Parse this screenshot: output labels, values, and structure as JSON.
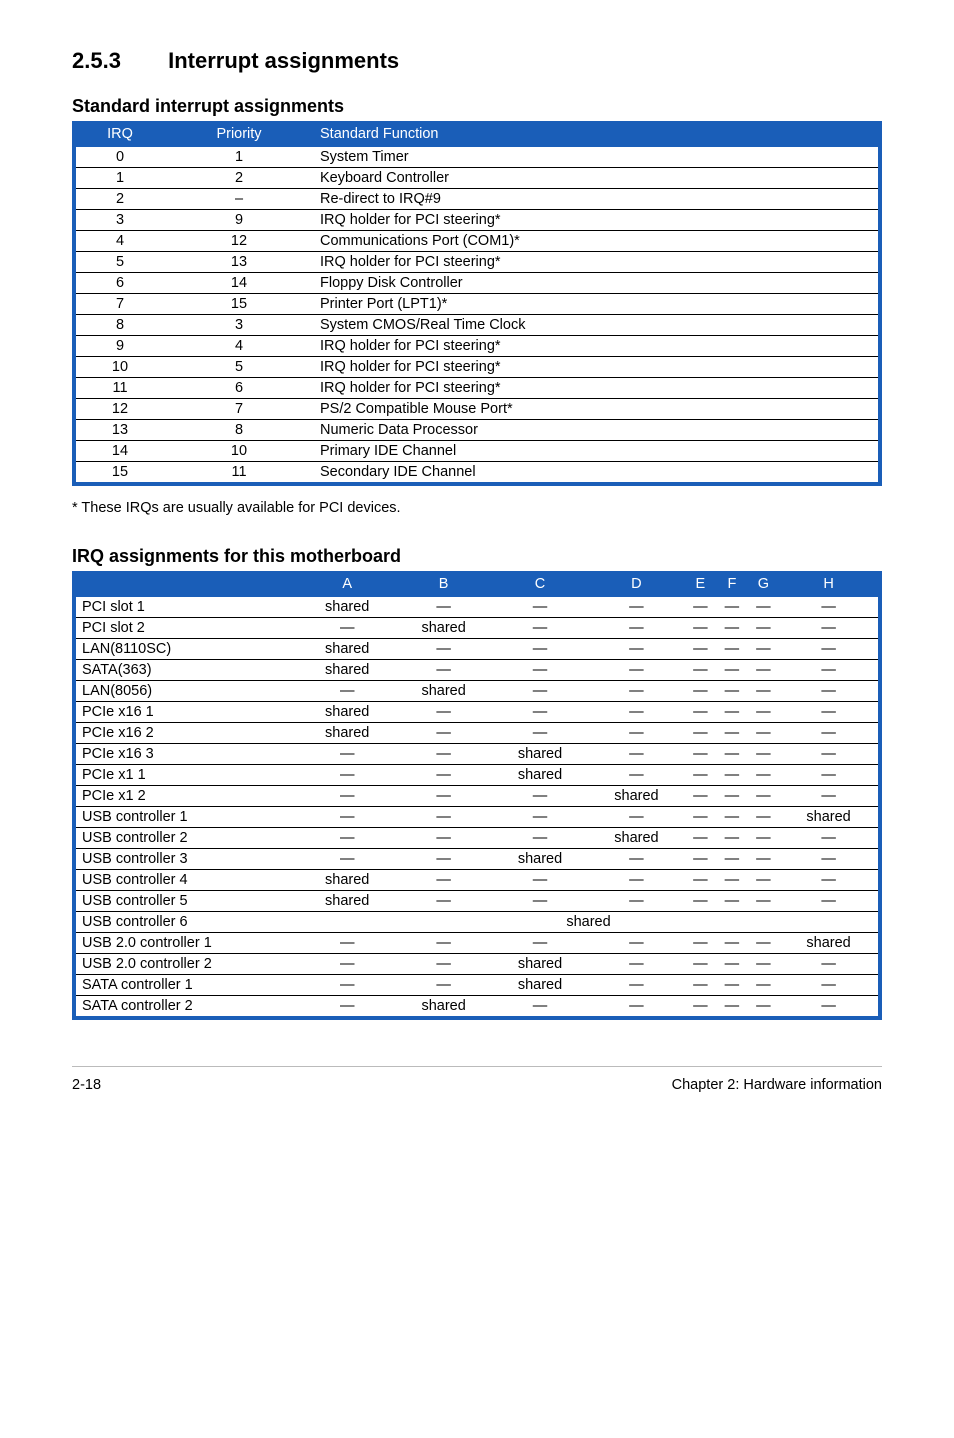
{
  "heading": {
    "number": "2.5.3",
    "title": "Interrupt assignments"
  },
  "table1": {
    "caption": "Standard interrupt assignments",
    "headers": {
      "irq": "IRQ",
      "priority": "Priority",
      "func": "Standard Function"
    },
    "rows": [
      {
        "irq": "0",
        "priority": "1",
        "func": "System Timer"
      },
      {
        "irq": "1",
        "priority": "2",
        "func": "Keyboard Controller"
      },
      {
        "irq": "2",
        "priority": "–",
        "func": "Re-direct to IRQ#9"
      },
      {
        "irq": "3",
        "priority": "9",
        "func": "IRQ holder for PCI steering*"
      },
      {
        "irq": "4",
        "priority": "12",
        "func": "Communications Port (COM1)*"
      },
      {
        "irq": "5",
        "priority": "13",
        "func": "IRQ holder for PCI steering*"
      },
      {
        "irq": "6",
        "priority": "14",
        "func": "Floppy Disk Controller"
      },
      {
        "irq": "7",
        "priority": "15",
        "func": "Printer Port (LPT1)*"
      },
      {
        "irq": "8",
        "priority": "3",
        "func": "System CMOS/Real Time Clock"
      },
      {
        "irq": "9",
        "priority": "4",
        "func": "IRQ holder for PCI steering*"
      },
      {
        "irq": "10",
        "priority": "5",
        "func": "IRQ holder for PCI steering*"
      },
      {
        "irq": "11",
        "priority": "6",
        "func": "IRQ holder for PCI steering*"
      },
      {
        "irq": "12",
        "priority": "7",
        "func": "PS/2 Compatible Mouse Port*"
      },
      {
        "irq": "13",
        "priority": "8",
        "func": "Numeric Data Processor"
      },
      {
        "irq": "14",
        "priority": "10",
        "func": "Primary IDE Channel"
      },
      {
        "irq": "15",
        "priority": "11",
        "func": "Secondary IDE Channel"
      }
    ],
    "footnote": "* These IRQs are usually available for PCI devices."
  },
  "table2": {
    "caption": "IRQ assignments for this motherboard",
    "cols": [
      "A",
      "B",
      "C",
      "D",
      "E",
      "F",
      "G",
      "H"
    ],
    "rows": [
      {
        "label": "PCI slot 1",
        "cells": [
          "shared",
          "—",
          "—",
          "—",
          "—",
          "—",
          "—",
          "—"
        ]
      },
      {
        "label": "PCI slot 2",
        "cells": [
          "—",
          "shared",
          "—",
          "—",
          "—",
          "—",
          "—",
          "—"
        ]
      },
      {
        "label": "LAN(8110SC)",
        "cells": [
          "shared",
          "—",
          "—",
          "—",
          "—",
          "—",
          "—",
          "—"
        ]
      },
      {
        "label": "SATA(363)",
        "cells": [
          "shared",
          "—",
          "—",
          "—",
          "—",
          "—",
          "—",
          "—"
        ]
      },
      {
        "label": "LAN(8056)",
        "cells": [
          "—",
          "shared",
          "—",
          "—",
          "—",
          "—",
          "—",
          "—"
        ]
      },
      {
        "label": "PCIe x16 1",
        "cells": [
          "shared",
          "—",
          "—",
          "—",
          "—",
          "—",
          "—",
          "—"
        ]
      },
      {
        "label": "PCIe x16 2",
        "cells": [
          "shared",
          "—",
          "—",
          "—",
          "—",
          "—",
          "—",
          "—"
        ]
      },
      {
        "label": "PCIe x16 3",
        "cells": [
          "—",
          "—",
          "shared",
          "—",
          "—",
          "—",
          "—",
          "—"
        ]
      },
      {
        "label": "PCIe x1 1",
        "cells": [
          "—",
          "—",
          "shared",
          "—",
          "—",
          "—",
          "—",
          "—"
        ]
      },
      {
        "label": "PCIe x1 2",
        "cells": [
          "—",
          "—",
          "—",
          "shared",
          "—",
          "—",
          "—",
          "—"
        ]
      },
      {
        "label": "USB controller 1",
        "cells": [
          "—",
          "—",
          "—",
          "—",
          "—",
          "—",
          "—",
          "shared"
        ]
      },
      {
        "label": "USB controller 2",
        "cells": [
          "—",
          "—",
          "—",
          "shared",
          "—",
          "—",
          "—",
          "—"
        ]
      },
      {
        "label": "USB controller 3",
        "cells": [
          "—",
          "—",
          "shared",
          "—",
          "—",
          "—",
          "—",
          "—"
        ]
      },
      {
        "label": "USB controller 4",
        "cells": [
          "shared",
          "—",
          "—",
          "—",
          "—",
          "—",
          "—",
          "—"
        ]
      },
      {
        "label": "USB controller 5",
        "cells": [
          "shared",
          "—",
          "—",
          "—",
          "—",
          "—",
          "—",
          "—"
        ]
      },
      {
        "label": "USB controller 6",
        "merged": "shared"
      },
      {
        "label": "USB 2.0 controller 1",
        "cells": [
          "—",
          "—",
          "—",
          "—",
          "—",
          "—",
          "—",
          "shared"
        ]
      },
      {
        "label": "USB 2.0 controller 2",
        "cells": [
          "—",
          "—",
          "shared",
          "—",
          "—",
          "—",
          "—",
          "—"
        ]
      },
      {
        "label": "SATA controller 1",
        "cells": [
          "—",
          "—",
          "shared",
          "—",
          "—",
          "—",
          "—",
          "—"
        ]
      },
      {
        "label": "SATA controller 2",
        "cells": [
          "—",
          "shared",
          "—",
          "—",
          "—",
          "—",
          "—",
          "—"
        ]
      }
    ]
  },
  "footer": {
    "left": "2-18",
    "right": "Chapter 2: Hardware information"
  },
  "colors": {
    "header_blue": "#1a5eb8",
    "header_text": "#ffffff",
    "rule": "#000000",
    "footer_rule": "#bbbbbb"
  }
}
